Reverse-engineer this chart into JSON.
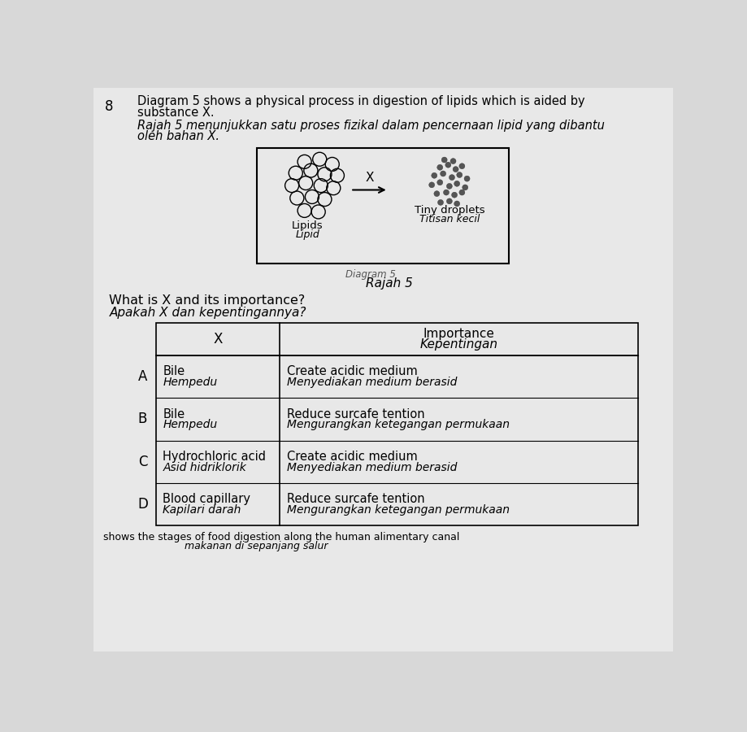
{
  "question_number": "8",
  "title_line1_en": "Diagram 5 shows a physical process in digestion of lipids which is aided by",
  "title_line2_en": "substance X.",
  "title_line1_my": "Rajah 5 menunjukkan satu proses fizikal dalam pencernaan lipid yang dibantu",
  "title_line2_my": "oleh bahan X.",
  "diagram_label": "Rajah 5",
  "lipids_label_en": "Lipids",
  "lipids_label_my": "Lipid",
  "droplets_label_en": "Tiny droplets",
  "droplets_label_my": "Titisan kecil",
  "arrow_label": "X",
  "question_en": "What is X and its importance?",
  "question_my": "Apakah X dan kepentingannya?",
  "table_header_x": "X",
  "table_header_importance_en": "Importance",
  "table_header_importance_my": "Kepentingan",
  "rows": [
    {
      "option": "A",
      "x_en": "Bile",
      "x_my": "Hempedu",
      "importance_en": "Create acidic medium",
      "importance_my": "Menyediakan medium berasid"
    },
    {
      "option": "B",
      "x_en": "Bile",
      "x_my": "Hempedu",
      "importance_en": "Reduce surcafe tention",
      "importance_my": "Mengurangkan ketegangan permukaan"
    },
    {
      "option": "C",
      "x_en": "Hydrochloric acid",
      "x_my": "Asid hidriklorik",
      "importance_en": "Create acidic medium",
      "importance_my": "Menyediakan medium berasid"
    },
    {
      "option": "D",
      "x_en": "Blood capillary",
      "x_my": "Kapilari darah",
      "importance_en": "Reduce surcafe tention",
      "importance_my": "Mengurangkan ketegangan permukaan"
    }
  ],
  "bottom_text_en": "shows the stages of food digestion along the human alimentary canal",
  "bottom_text_my": "makanan di sepanjang salur",
  "background_color": "#d8d8d8",
  "page_color": "#e8e8e8"
}
